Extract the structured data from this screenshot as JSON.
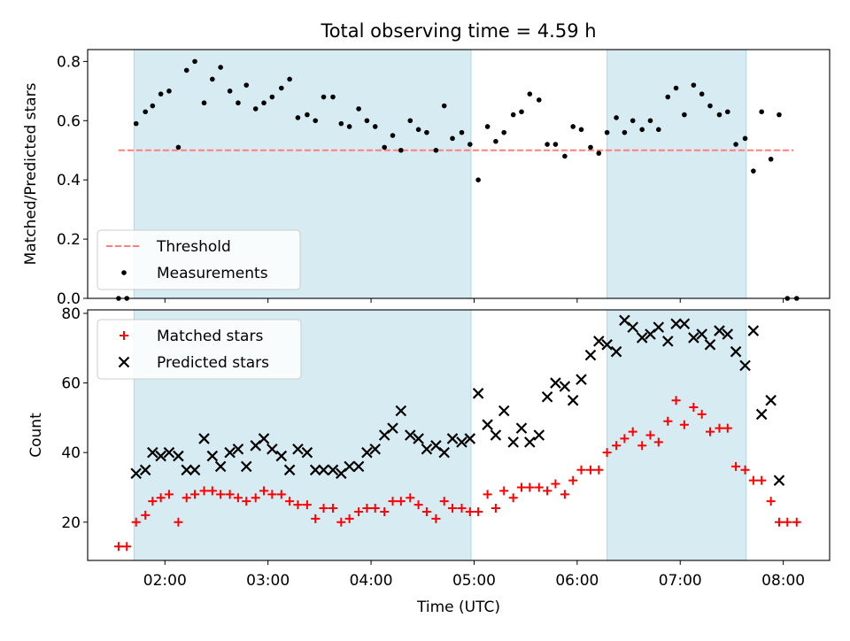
{
  "chart_data": [
    {
      "type": "scatter",
      "title": "Total observing time = 4.59 h",
      "xlabel": "",
      "ylabel": "Matched/Predicted stars",
      "ylim": [
        0,
        0.84
      ],
      "yticks": [
        "0.0",
        "0.2",
        "0.4",
        "0.6",
        "0.8"
      ],
      "ytick_values": [
        0,
        0.2,
        0.4,
        0.6,
        0.8
      ],
      "xlim": [
        1.25,
        8.45
      ],
      "grid": false,
      "legend_position": "lower-left",
      "shaded_intervals": [
        [
          1.7,
          4.97
        ],
        [
          6.29,
          7.64
        ]
      ],
      "series": [
        {
          "name": "Threshold",
          "style": "dashed-line",
          "color": "#ff7f7f",
          "x": [
            1.55,
            8.1
          ],
          "y": [
            0.5,
            0.5
          ]
        },
        {
          "name": "Measurements",
          "style": "dot",
          "color": "#000000",
          "x": [
            1.55,
            1.63,
            1.72,
            1.81,
            1.88,
            1.96,
            2.04,
            2.13,
            2.21,
            2.29,
            2.38,
            2.46,
            2.54,
            2.63,
            2.71,
            2.79,
            2.88,
            2.96,
            3.04,
            3.13,
            3.21,
            3.29,
            3.38,
            3.46,
            3.54,
            3.63,
            3.71,
            3.79,
            3.88,
            3.96,
            4.04,
            4.13,
            4.21,
            4.29,
            4.38,
            4.46,
            4.54,
            4.63,
            4.71,
            4.79,
            4.88,
            4.96,
            5.04,
            5.13,
            5.21,
            5.29,
            5.38,
            5.46,
            5.54,
            5.63,
            5.71,
            5.79,
            5.88,
            5.96,
            6.04,
            6.13,
            6.21,
            6.29,
            6.38,
            6.46,
            6.54,
            6.63,
            6.71,
            6.79,
            6.88,
            6.96,
            7.04,
            7.13,
            7.21,
            7.29,
            7.38,
            7.46,
            7.54,
            7.63,
            7.71,
            7.79,
            7.88,
            7.96,
            8.04,
            8.13
          ],
          "y": [
            0.0,
            0.0,
            0.59,
            0.63,
            0.65,
            0.69,
            0.7,
            0.51,
            0.77,
            0.8,
            0.66,
            0.74,
            0.78,
            0.7,
            0.66,
            0.72,
            0.64,
            0.66,
            0.68,
            0.71,
            0.74,
            0.61,
            0.62,
            0.6,
            0.68,
            0.68,
            0.59,
            0.58,
            0.64,
            0.6,
            0.58,
            0.51,
            0.55,
            0.5,
            0.6,
            0.57,
            0.56,
            0.5,
            0.65,
            0.54,
            0.56,
            0.52,
            0.4,
            0.58,
            0.53,
            0.56,
            0.62,
            0.63,
            0.69,
            0.67,
            0.52,
            0.52,
            0.48,
            0.58,
            0.57,
            0.51,
            0.49,
            0.56,
            0.61,
            0.56,
            0.6,
            0.57,
            0.6,
            0.57,
            0.68,
            0.71,
            0.62,
            0.72,
            0.69,
            0.65,
            0.62,
            0.63,
            0.52,
            0.54,
            0.43,
            0.63,
            0.47,
            0.62,
            0.0,
            0.0
          ]
        }
      ]
    },
    {
      "type": "scatter",
      "title": "",
      "xlabel": "Time (UTC)",
      "ylabel": "Count",
      "ylim": [
        9,
        81
      ],
      "yticks": [
        "20",
        "40",
        "60",
        "80"
      ],
      "ytick_values": [
        20,
        40,
        60,
        80
      ],
      "xlim": [
        1.25,
        8.45
      ],
      "xticks": [
        "02:00",
        "03:00",
        "04:00",
        "05:00",
        "06:00",
        "07:00",
        "08:00"
      ],
      "xtick_values": [
        2,
        3,
        4,
        5,
        6,
        7,
        8
      ],
      "grid": false,
      "legend_position": "top-left",
      "shaded_intervals": [
        [
          1.7,
          4.97
        ],
        [
          6.29,
          7.64
        ]
      ],
      "series": [
        {
          "name": "Matched stars",
          "style": "plus",
          "color": "#ff0000",
          "x": [
            1.55,
            1.63,
            1.72,
            1.81,
            1.88,
            1.96,
            2.04,
            2.13,
            2.21,
            2.29,
            2.38,
            2.46,
            2.54,
            2.63,
            2.71,
            2.79,
            2.88,
            2.96,
            3.04,
            3.13,
            3.21,
            3.29,
            3.38,
            3.46,
            3.54,
            3.63,
            3.71,
            3.79,
            3.88,
            3.96,
            4.04,
            4.13,
            4.21,
            4.29,
            4.38,
            4.46,
            4.54,
            4.63,
            4.71,
            4.79,
            4.88,
            4.96,
            5.04,
            5.13,
            5.21,
            5.29,
            5.38,
            5.46,
            5.54,
            5.63,
            5.71,
            5.79,
            5.88,
            5.96,
            6.04,
            6.13,
            6.21,
            6.29,
            6.38,
            6.46,
            6.54,
            6.63,
            6.71,
            6.79,
            6.88,
            6.96,
            7.04,
            7.13,
            7.21,
            7.29,
            7.38,
            7.46,
            7.54,
            7.63,
            7.71,
            7.79,
            7.88,
            7.96,
            8.04,
            8.13
          ],
          "y": [
            13,
            13,
            20,
            22,
            26,
            27,
            28,
            20,
            27,
            28,
            29,
            29,
            28,
            28,
            27,
            26,
            27,
            29,
            28,
            28,
            26,
            25,
            25,
            21,
            24,
            24,
            20,
            21,
            23,
            24,
            24,
            23,
            26,
            26,
            27,
            25,
            23,
            21,
            26,
            24,
            24,
            23,
            23,
            28,
            24,
            29,
            27,
            30,
            30,
            30,
            29,
            31,
            28,
            32,
            35,
            35,
            35,
            40,
            42,
            44,
            46,
            42,
            45,
            43,
            49,
            55,
            48,
            53,
            51,
            46,
            47,
            47,
            36,
            35,
            32,
            32,
            26,
            20,
            20,
            20
          ]
        },
        {
          "name": "Predicted stars",
          "style": "x",
          "color": "#000000",
          "x": [
            1.72,
            1.81,
            1.88,
            1.96,
            2.04,
            2.13,
            2.21,
            2.29,
            2.38,
            2.46,
            2.54,
            2.63,
            2.71,
            2.79,
            2.88,
            2.96,
            3.04,
            3.13,
            3.21,
            3.29,
            3.38,
            3.46,
            3.54,
            3.63,
            3.71,
            3.79,
            3.88,
            3.96,
            4.04,
            4.13,
            4.21,
            4.29,
            4.38,
            4.46,
            4.54,
            4.63,
            4.71,
            4.79,
            4.88,
            4.96,
            5.04,
            5.13,
            5.21,
            5.29,
            5.38,
            5.46,
            5.54,
            5.63,
            5.71,
            5.79,
            5.88,
            5.96,
            6.04,
            6.13,
            6.21,
            6.29,
            6.38,
            6.46,
            6.54,
            6.63,
            6.71,
            6.79,
            6.88,
            6.96,
            7.04,
            7.13,
            7.21,
            7.29,
            7.38,
            7.46,
            7.54,
            7.63,
            7.71,
            7.79,
            7.88,
            7.96
          ],
          "y": [
            34,
            35,
            40,
            39,
            40,
            39,
            35,
            35,
            44,
            39,
            36,
            40,
            41,
            36,
            42,
            44,
            41,
            39,
            35,
            41,
            40,
            35,
            35,
            35,
            34,
            36,
            36,
            40,
            41,
            45,
            47,
            52,
            45,
            44,
            41,
            42,
            40,
            44,
            43,
            44,
            57,
            48,
            45,
            52,
            43,
            47,
            43,
            45,
            56,
            60,
            59,
            55,
            61,
            68,
            72,
            71,
            69,
            78,
            76,
            73,
            74,
            76,
            72,
            77,
            77,
            73,
            74,
            71,
            75,
            74,
            69,
            65,
            75,
            51,
            55,
            32
          ]
        }
      ]
    }
  ]
}
